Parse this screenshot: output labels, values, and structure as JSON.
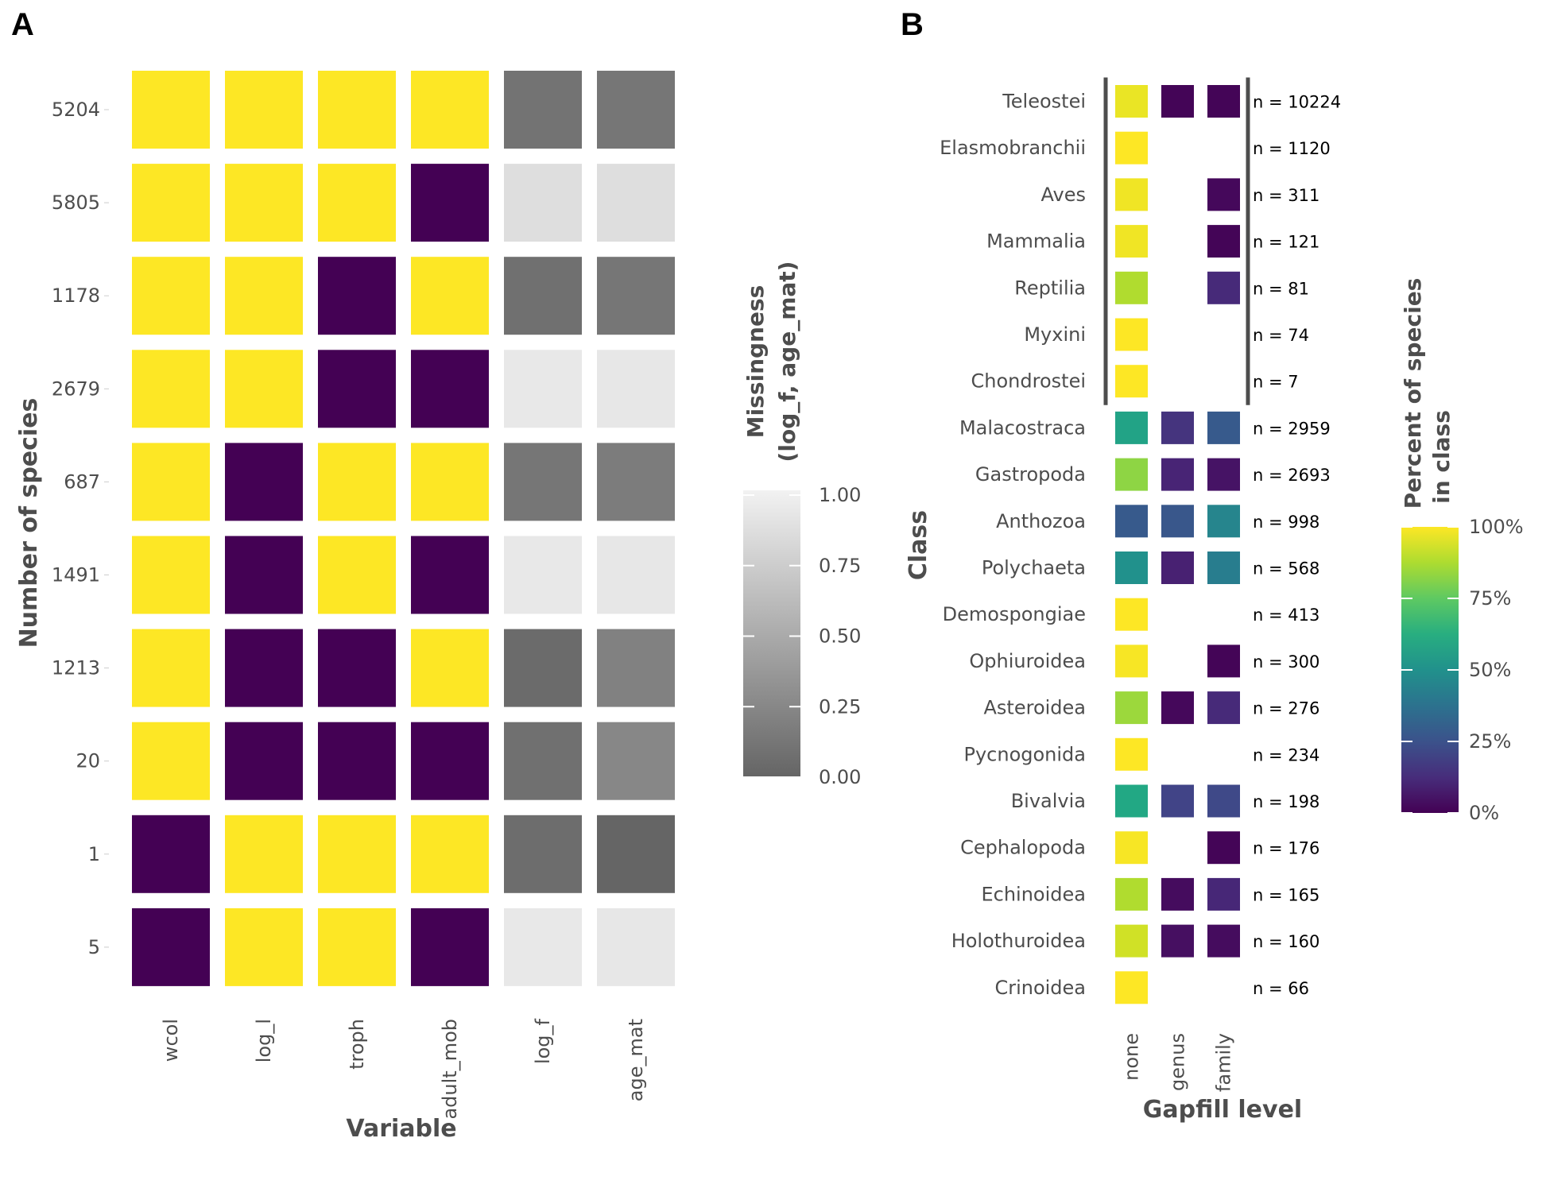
{
  "chart_data": [
    {
      "panel_label": "A",
      "type": "heatmap",
      "xlabel": "Variable",
      "ylabel": "Number of species",
      "x": [
        "wcol",
        "log_l",
        "troph",
        "adult_mob",
        "log_f",
        "age_mat"
      ],
      "rows": [
        "5204",
        "5805",
        "1178",
        "2679",
        "687",
        "1491",
        "1213",
        "20",
        "1",
        "5"
      ],
      "presence": [
        [
          1,
          1,
          1,
          1
        ],
        [
          1,
          1,
          1,
          0
        ],
        [
          1,
          1,
          0,
          1
        ],
        [
          1,
          1,
          0,
          0
        ],
        [
          1,
          0,
          1,
          1
        ],
        [
          1,
          0,
          1,
          0
        ],
        [
          1,
          0,
          0,
          1
        ],
        [
          1,
          0,
          0,
          0
        ],
        [
          0,
          1,
          1,
          1
        ],
        [
          0,
          1,
          1,
          0
        ]
      ],
      "missingness": [
        [
          0.1,
          0.12
        ],
        [
          0.86,
          0.86
        ],
        [
          0.08,
          0.12
        ],
        [
          0.93,
          0.92
        ],
        [
          0.12,
          0.16
        ],
        [
          0.93,
          0.92
        ],
        [
          0.04,
          0.2
        ],
        [
          0.08,
          0.24
        ],
        [
          0.06,
          0.0
        ],
        [
          0.93,
          0.92
        ]
      ],
      "colors": {
        "present": "#fde725",
        "absent": "#440154"
      },
      "legend": {
        "title_lines": [
          "Missingness",
          "(log_f, age_mat)"
        ],
        "ticks": [
          "1.00",
          "0.75",
          "0.50",
          "0.25",
          "0.00"
        ],
        "range": [
          0,
          1
        ],
        "color_low": "#656565",
        "color_high": "#f2f2f2"
      }
    },
    {
      "panel_label": "B",
      "type": "heatmap",
      "xlabel": "Gapfill level",
      "ylabel": "Class",
      "x": [
        "none",
        "genus",
        "family"
      ],
      "classes": [
        {
          "name": "Teleostei",
          "n": "n = 10224",
          "pct": [
            97,
            1,
            1
          ]
        },
        {
          "name": "Elasmobranchii",
          "n": "n = 1120",
          "pct": [
            100,
            null,
            null
          ]
        },
        {
          "name": "Aves",
          "n": "n = 311",
          "pct": [
            98,
            null,
            2
          ]
        },
        {
          "name": "Mammalia",
          "n": "n = 121",
          "pct": [
            98,
            null,
            1
          ]
        },
        {
          "name": "Reptilia",
          "n": "n = 81",
          "pct": [
            88,
            null,
            12
          ]
        },
        {
          "name": "Myxini",
          "n": "n = 74",
          "pct": [
            100,
            null,
            null
          ]
        },
        {
          "name": "Chondrostei",
          "n": "n = 7",
          "pct": [
            100,
            null,
            null
          ]
        },
        {
          "name": "Malacostraca",
          "n": "n = 2959",
          "pct": [
            58,
            15,
            28
          ]
        },
        {
          "name": "Gastropoda",
          "n": "n = 2693",
          "pct": [
            83,
            10,
            5
          ]
        },
        {
          "name": "Anthozoa",
          "n": "n = 998",
          "pct": [
            28,
            27,
            45
          ]
        },
        {
          "name": "Polychaeta",
          "n": "n = 568",
          "pct": [
            50,
            9,
            42
          ]
        },
        {
          "name": "Demospongiae",
          "n": "n = 413",
          "pct": [
            100,
            null,
            null
          ]
        },
        {
          "name": "Ophiuroidea",
          "n": "n = 300",
          "pct": [
            99,
            null,
            1
          ]
        },
        {
          "name": "Asteroidea",
          "n": "n = 276",
          "pct": [
            85,
            2,
            12
          ]
        },
        {
          "name": "Pycnogonida",
          "n": "n = 234",
          "pct": [
            100,
            null,
            null
          ]
        },
        {
          "name": "Bivalvia",
          "n": "n = 198",
          "pct": [
            60,
            20,
            22
          ]
        },
        {
          "name": "Cephalopoda",
          "n": "n = 176",
          "pct": [
            99,
            null,
            1
          ]
        },
        {
          "name": "Echinoidea",
          "n": "n = 165",
          "pct": [
            88,
            3,
            11
          ]
        },
        {
          "name": "Holothuroidea",
          "n": "n = 160",
          "pct": [
            93,
            4,
            3
          ]
        },
        {
          "name": "Crinoidea",
          "n": "n = 66",
          "pct": [
            100,
            null,
            null
          ]
        }
      ],
      "bracketed_classes": [
        "Teleostei",
        "Elasmobranchii",
        "Aves",
        "Mammalia",
        "Reptilia",
        "Myxini",
        "Chondrostei"
      ],
      "legend": {
        "title_lines": [
          "Percent of species",
          "in class"
        ],
        "ticks": [
          "100%",
          "75%",
          "50%",
          "25%",
          "0%"
        ],
        "range": [
          0,
          100
        ]
      }
    }
  ]
}
